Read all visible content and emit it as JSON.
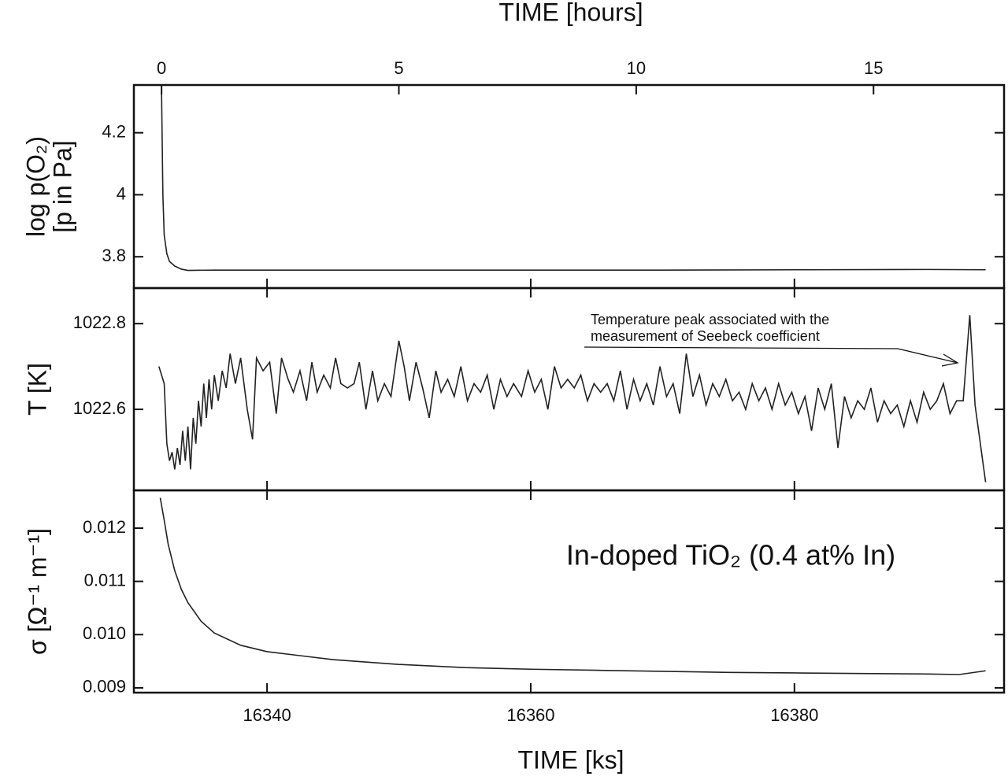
{
  "chart_data": [
    {
      "type": "line",
      "top_xlabel": "TIME [hours]",
      "top_xlim": [
        -0.583,
        17.75
      ],
      "top_xticks": [
        0,
        5,
        10,
        15
      ],
      "ylabel": [
        "log p(O₂)",
        "[p in Pa]"
      ],
      "color": "#222",
      "xlim": [
        16329.9,
        16395.9
      ],
      "ylim": [
        3.699,
        4.354
      ],
      "yticks": [
        3.8,
        4.0,
        4.2
      ],
      "x": [
        16332.0,
        16332.1,
        16332.2,
        16332.4,
        16332.6,
        16333.0,
        16333.5,
        16334,
        16336,
        16340,
        16350,
        16360,
        16370,
        16380,
        16390,
        16394.5
      ],
      "values": [
        4.33,
        4.0,
        3.87,
        3.81,
        3.785,
        3.77,
        3.76,
        3.756,
        3.757,
        3.757,
        3.757,
        3.757,
        3.757,
        3.758,
        3.759,
        3.758
      ]
    },
    {
      "type": "line",
      "ylabel": [
        "T [K]"
      ],
      "color": "#222",
      "xlim": [
        16329.9,
        16395.9
      ],
      "ylim": [
        1022.411,
        1022.883
      ],
      "yticks": [
        1022.6,
        1022.8
      ],
      "annotation": [
        "Temperature peak associated with the",
        "measurement of Seebeck coefficient"
      ],
      "x": [
        16331.8,
        16332.0,
        16332.2,
        16332.4,
        16332.6,
        16332.8,
        16333.0,
        16333.2,
        16333.4,
        16333.6,
        16333.8,
        16334.0,
        16334.2,
        16334.4,
        16334.6,
        16334.8,
        16335.0,
        16335.2,
        16335.4,
        16335.6,
        16335.8,
        16336.0,
        16336.3,
        16336.6,
        16336.9,
        16337.2,
        16337.6,
        16338.0,
        16338.5,
        16338.9,
        16339.2,
        16339.7,
        16340.2,
        16340.7,
        16341.1,
        16341.6,
        16342.0,
        16342.5,
        16343.0,
        16343.4,
        16343.8,
        16344.3,
        16344.8,
        16345.2,
        16345.6,
        16346.1,
        16346.6,
        16347.0,
        16347.5,
        16348.0,
        16348.4,
        16348.9,
        16349.4,
        16350.0,
        16350.4,
        16350.8,
        16351.3,
        16351.8,
        16352.3,
        16352.8,
        16353.2,
        16353.7,
        16354.2,
        16354.7,
        16355.2,
        16355.7,
        16356.2,
        16356.7,
        16357.2,
        16357.7,
        16358.2,
        16358.7,
        16359.3,
        16359.8,
        16360.3,
        16360.8,
        16361.3,
        16361.8,
        16362.3,
        16362.8,
        16363.3,
        16363.8,
        16364.3,
        16364.8,
        16365.3,
        16365.8,
        16366.3,
        16366.8,
        16367.3,
        16367.8,
        16368.3,
        16368.8,
        16369.3,
        16369.8,
        16370.3,
        16370.8,
        16371.3,
        16371.8,
        16372.3,
        16372.8,
        16373.3,
        16373.8,
        16374.3,
        16374.8,
        16375.3,
        16375.8,
        16376.3,
        16376.8,
        16377.3,
        16377.8,
        16378.3,
        16378.8,
        16379.3,
        16379.8,
        16380.3,
        16380.8,
        16381.3,
        16381.8,
        16382.3,
        16382.8,
        16383.3,
        16383.8,
        16384.3,
        16384.8,
        16385.3,
        16385.8,
        16386.3,
        16386.8,
        16387.3,
        16387.8,
        16388.3,
        16388.8,
        16389.3,
        16389.8,
        16390.3,
        16390.8,
        16391.3,
        16391.8,
        16392.3,
        16392.8,
        16393.3,
        16393.7,
        16394.5
      ],
      "values": [
        1022.7,
        1022.68,
        1022.66,
        1022.52,
        1022.48,
        1022.5,
        1022.46,
        1022.51,
        1022.47,
        1022.55,
        1022.48,
        1022.56,
        1022.46,
        1022.58,
        1022.52,
        1022.62,
        1022.56,
        1022.66,
        1022.58,
        1022.67,
        1022.6,
        1022.68,
        1022.62,
        1022.69,
        1022.65,
        1022.73,
        1022.66,
        1022.72,
        1022.6,
        1022.53,
        1022.72,
        1022.69,
        1022.71,
        1022.59,
        1022.72,
        1022.67,
        1022.64,
        1022.69,
        1022.62,
        1022.71,
        1022.64,
        1022.68,
        1022.65,
        1022.72,
        1022.66,
        1022.65,
        1022.66,
        1022.71,
        1022.6,
        1022.69,
        1022.62,
        1022.66,
        1022.63,
        1022.76,
        1022.7,
        1022.62,
        1022.71,
        1022.65,
        1022.58,
        1022.69,
        1022.64,
        1022.67,
        1022.63,
        1022.7,
        1022.62,
        1022.66,
        1022.64,
        1022.68,
        1022.6,
        1022.67,
        1022.63,
        1022.66,
        1022.63,
        1022.69,
        1022.64,
        1022.67,
        1022.6,
        1022.7,
        1022.65,
        1022.67,
        1022.65,
        1022.68,
        1022.62,
        1022.66,
        1022.64,
        1022.66,
        1022.62,
        1022.69,
        1022.6,
        1022.67,
        1022.62,
        1022.66,
        1022.61,
        1022.7,
        1022.63,
        1022.66,
        1022.59,
        1022.73,
        1022.63,
        1022.68,
        1022.61,
        1022.66,
        1022.63,
        1022.67,
        1022.62,
        1022.64,
        1022.6,
        1022.66,
        1022.62,
        1022.65,
        1022.6,
        1022.66,
        1022.61,
        1022.64,
        1022.59,
        1022.63,
        1022.55,
        1022.65,
        1022.6,
        1022.66,
        1022.51,
        1022.63,
        1022.58,
        1022.62,
        1022.6,
        1022.65,
        1022.57,
        1022.62,
        1022.59,
        1022.61,
        1022.56,
        1022.62,
        1022.57,
        1022.64,
        1022.6,
        1022.62,
        1022.66,
        1022.59,
        1022.62,
        1022.62,
        1022.82,
        1022.61,
        1022.43
      ]
    },
    {
      "type": "line",
      "ylabel": [
        "σ [Ω⁻¹ m⁻¹]"
      ],
      "color": "#222",
      "xlim": [
        16329.9,
        16395.9
      ],
      "ylim": [
        0.00891,
        0.01271
      ],
      "yticks": [
        0.009,
        {
          "value": 0.01,
          "label": "0.010"
        },
        0.011,
        0.012
      ],
      "xticks": [
        16340,
        16360,
        16380
      ],
      "xlabel": "TIME [ks]",
      "annotation": "In-doped TiO₂ (0.4 at% In)",
      "x": [
        16331.9,
        16332.2,
        16332.5,
        16333,
        16333.5,
        16334,
        16335,
        16336,
        16338,
        16340,
        16345,
        16350,
        16355,
        16360,
        16365,
        16370,
        16375,
        16380,
        16385,
        16390,
        16392.5,
        16394.5
      ],
      "values": [
        0.01257,
        0.01215,
        0.0117,
        0.0112,
        0.01085,
        0.0106,
        0.01025,
        0.01003,
        0.0098,
        0.00968,
        0.00953,
        0.00944,
        0.00938,
        0.00935,
        0.00933,
        0.00931,
        0.00929,
        0.00928,
        0.00927,
        0.00926,
        0.00925,
        0.00932
      ]
    }
  ]
}
